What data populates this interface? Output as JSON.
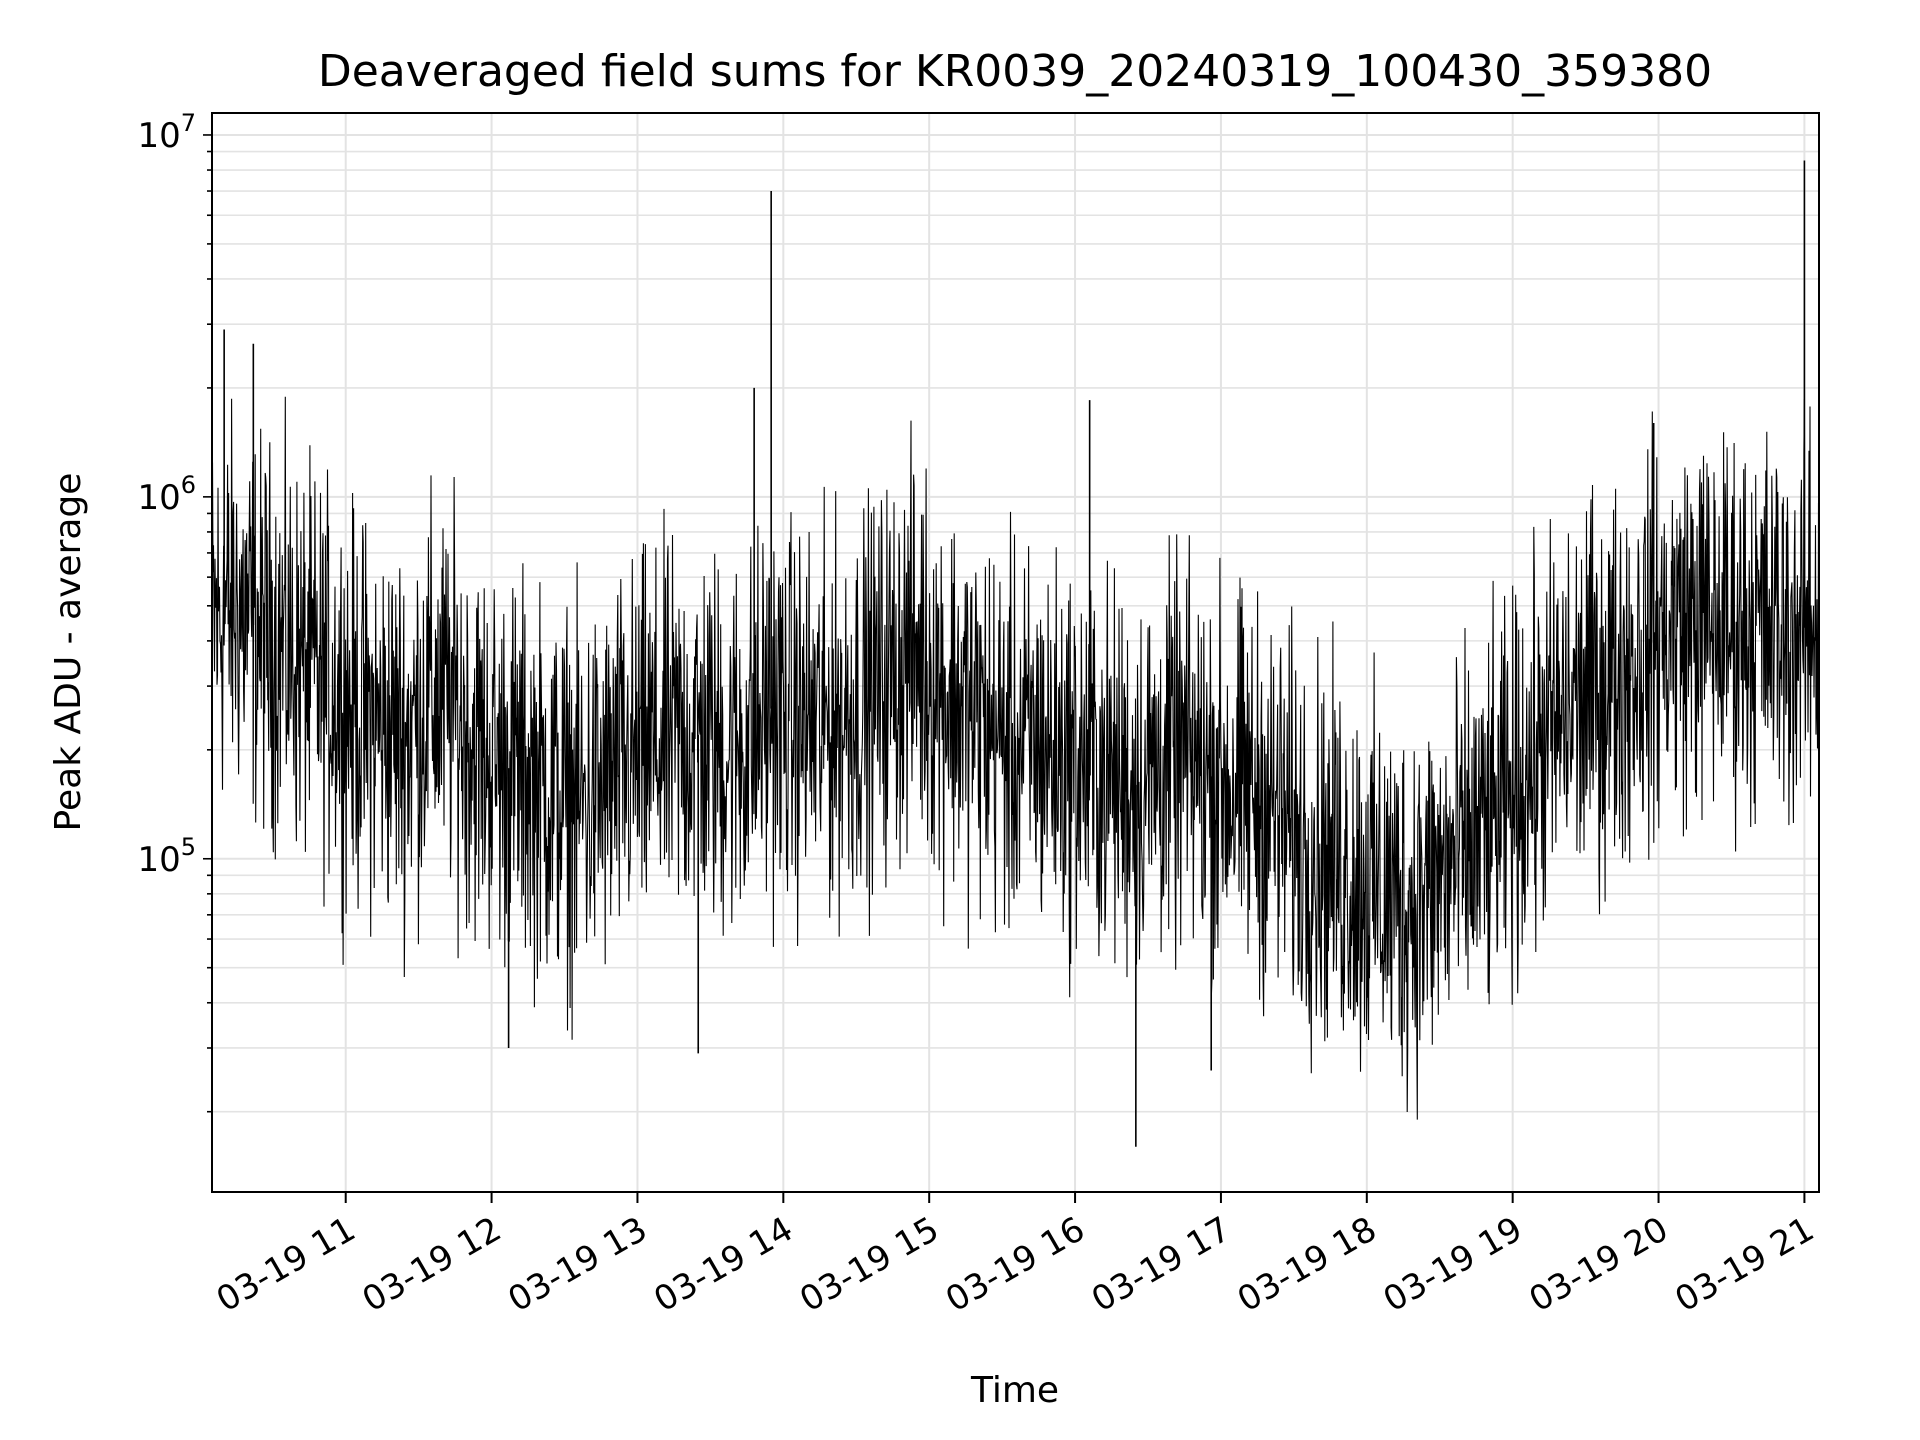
{
  "chart_data": {
    "type": "line",
    "title": "Deaveraged field sums for KR0039_20240319_100430_359380",
    "xlabel": "Time",
    "ylabel": "Peak ADU - average",
    "yscale": "log",
    "ylim": [
      12000,
      11500000
    ],
    "xlim": [
      "2024-03-19 10:05",
      "2024-03-19 21:06"
    ],
    "x_ticks": [
      "03-19 11",
      "03-19 12",
      "03-19 13",
      "03-19 14",
      "03-19 15",
      "03-19 16",
      "03-19 17",
      "03-19 18",
      "03-19 19",
      "03-19 20",
      "03-19 21"
    ],
    "x_tick_times": [
      "2024-03-19 11:00",
      "2024-03-19 12:00",
      "2024-03-19 13:00",
      "2024-03-19 14:00",
      "2024-03-19 15:00",
      "2024-03-19 16:00",
      "2024-03-19 17:00",
      "2024-03-19 18:00",
      "2024-03-19 19:00",
      "2024-03-19 20:00",
      "2024-03-19 21:00"
    ],
    "y_ticks": [
      {
        "value": 100000,
        "base": "10",
        "exp": "5"
      },
      {
        "value": 1000000,
        "base": "10",
        "exp": "6"
      },
      {
        "value": 10000000,
        "base": "10",
        "exp": "7"
      }
    ],
    "grid": "major+minor",
    "line_color": "#000000",
    "series": [
      {
        "name": "",
        "x": [
          "2024-03-19 10:05",
          "2024-03-19 10:15",
          "2024-03-19 10:25",
          "2024-03-19 10:35",
          "2024-03-19 10:45",
          "2024-03-19 10:55",
          "2024-03-19 11:05",
          "2024-03-19 11:15",
          "2024-03-19 11:25",
          "2024-03-19 11:35",
          "2024-03-19 11:45",
          "2024-03-19 11:55",
          "2024-03-19 12:05",
          "2024-03-19 12:15",
          "2024-03-19 12:25",
          "2024-03-19 12:35",
          "2024-03-19 12:45",
          "2024-03-19 12:55",
          "2024-03-19 13:05",
          "2024-03-19 13:15",
          "2024-03-19 13:25",
          "2024-03-19 13:35",
          "2024-03-19 13:45",
          "2024-03-19 13:55",
          "2024-03-19 14:05",
          "2024-03-19 14:15",
          "2024-03-19 14:25",
          "2024-03-19 14:35",
          "2024-03-19 14:45",
          "2024-03-19 14:55",
          "2024-03-19 15:05",
          "2024-03-19 15:15",
          "2024-03-19 15:25",
          "2024-03-19 15:35",
          "2024-03-19 15:45",
          "2024-03-19 15:55",
          "2024-03-19 16:05",
          "2024-03-19 16:15",
          "2024-03-19 16:25",
          "2024-03-19 16:35",
          "2024-03-19 16:45",
          "2024-03-19 16:55",
          "2024-03-19 17:05",
          "2024-03-19 17:15",
          "2024-03-19 17:25",
          "2024-03-19 17:35",
          "2024-03-19 17:45",
          "2024-03-19 17:55",
          "2024-03-19 18:05",
          "2024-03-19 18:15",
          "2024-03-19 18:25",
          "2024-03-19 18:35",
          "2024-03-19 18:45",
          "2024-03-19 18:55",
          "2024-03-19 19:05",
          "2024-03-19 19:15",
          "2024-03-19 19:25",
          "2024-03-19 19:35",
          "2024-03-19 19:45",
          "2024-03-19 19:55",
          "2024-03-19 20:05",
          "2024-03-19 20:15",
          "2024-03-19 20:25",
          "2024-03-19 20:35",
          "2024-03-19 20:45",
          "2024-03-19 20:55",
          "2024-03-19 21:05"
        ],
        "y": [
          450000,
          500000,
          420000,
          380000,
          330000,
          300000,
          250000,
          230000,
          220000,
          280000,
          260000,
          200000,
          180000,
          170000,
          150000,
          140000,
          150000,
          180000,
          200000,
          210000,
          220000,
          200000,
          210000,
          260000,
          240000,
          230000,
          250000,
          280000,
          330000,
          380000,
          300000,
          260000,
          230000,
          200000,
          210000,
          190000,
          180000,
          170000,
          160000,
          180000,
          190000,
          170000,
          160000,
          150000,
          130000,
          110000,
          100000,
          90000,
          80000,
          75000,
          80000,
          95000,
          110000,
          130000,
          170000,
          220000,
          260000,
          290000,
          330000,
          380000,
          430000,
          460000,
          440000,
          450000,
          440000,
          420000,
          450000
        ],
        "spikes": [
          {
            "x": "2024-03-19 13:55",
            "y": 7000000
          },
          {
            "x": "2024-03-19 13:48",
            "y": 2000000
          },
          {
            "x": "2024-03-19 16:06",
            "y": 1850000
          },
          {
            "x": "2024-03-19 21:00",
            "y": 8500000
          },
          {
            "x": "2024-03-19 10:10",
            "y": 2900000
          },
          {
            "x": "2024-03-19 10:22",
            "y": 2650000
          },
          {
            "x": "2024-03-19 19:58",
            "y": 1600000
          },
          {
            "x": "2024-03-19 16:25",
            "y": 16000
          },
          {
            "x": "2024-03-19 12:07",
            "y": 30000
          },
          {
            "x": "2024-03-19 13:25",
            "y": 29000
          },
          {
            "x": "2024-03-19 16:56",
            "y": 26000
          }
        ]
      }
    ]
  }
}
